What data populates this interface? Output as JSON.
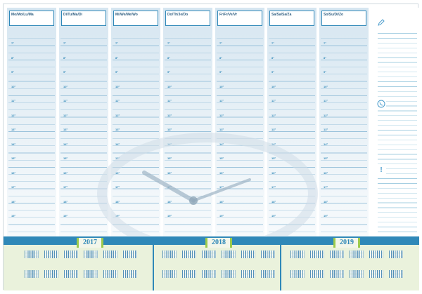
{
  "days": [
    {
      "label": "Mo/Mo/Lu/Ma"
    },
    {
      "label": "Di/Tu/Ma/Di"
    },
    {
      "label": "Mi/We/Me/Wo"
    },
    {
      "label": "Do/Th/Je/Do"
    },
    {
      "label": "Fr/Fr/Ve/Vr"
    },
    {
      "label": "Sa/Sa/Sa/Za"
    },
    {
      "label": "So/Su/Di/Zo"
    }
  ],
  "hours": [
    "7°",
    "8°",
    "9°",
    "10°",
    "11°",
    "12°",
    "13°",
    "14°",
    "15°",
    "16°",
    "17°",
    "18°",
    "19°"
  ],
  "notes": {
    "icons": [
      "pencil-icon",
      "phone-icon",
      "exclamation-icon"
    ]
  },
  "years": [
    "2017",
    "2018",
    "2019"
  ],
  "colors": {
    "accent": "#2f88b8",
    "highlight": "#9ccb4d",
    "bottom_bg": "#eaf2dc"
  }
}
